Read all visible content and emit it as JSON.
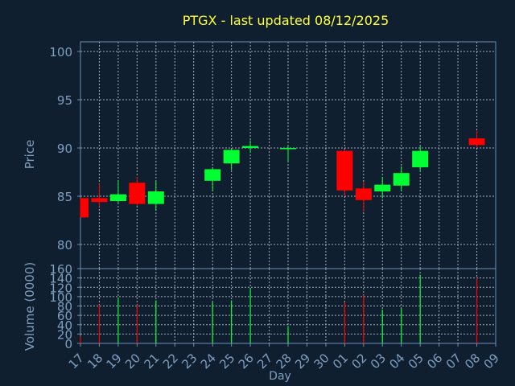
{
  "chart_data": [
    {
      "type": "candlestick",
      "title": "PTGX - last updated 08/12/2025",
      "ylabel": "Price",
      "ylim": [
        77.5,
        101
      ],
      "yticks": [
        80,
        85,
        90,
        95,
        100
      ],
      "grid": true,
      "x_tick_labels": [
        "17",
        "18",
        "19",
        "20",
        "21",
        "22",
        "23",
        "24",
        "25",
        "26",
        "27",
        "28",
        "29",
        "30",
        "01",
        "02",
        "03",
        "04",
        "05",
        "06",
        "07",
        "08",
        "09"
      ],
      "candles": [
        {
          "day": "17",
          "open": 84.8,
          "high": 84.8,
          "low": 82.8,
          "close": 82.8
        },
        {
          "day": "18",
          "open": 84.8,
          "high": 86.3,
          "low": 83.9,
          "close": 84.4
        },
        {
          "day": "19",
          "open": 84.5,
          "high": 86.6,
          "low": 84.3,
          "close": 85.2
        },
        {
          "day": "20",
          "open": 86.4,
          "high": 87.0,
          "low": 84.0,
          "close": 84.2
        },
        {
          "day": "21",
          "open": 84.2,
          "high": 86.6,
          "low": 83.5,
          "close": 85.5
        },
        {
          "day": "24",
          "open": 86.6,
          "high": 88.0,
          "low": 85.5,
          "close": 87.8
        },
        {
          "day": "25",
          "open": 88.4,
          "high": 89.9,
          "low": 87.7,
          "close": 89.8
        },
        {
          "day": "26",
          "open": 90.0,
          "high": 90.8,
          "low": 89.5,
          "close": 90.2
        },
        {
          "day": "28",
          "open": 89.9,
          "high": 90.3,
          "low": 88.6,
          "close": 90.0
        },
        {
          "day": "01",
          "open": 89.7,
          "high": 89.8,
          "low": 85.0,
          "close": 85.6
        },
        {
          "day": "02",
          "open": 85.8,
          "high": 86.5,
          "low": 83.4,
          "close": 84.6
        },
        {
          "day": "03",
          "open": 85.5,
          "high": 87.0,
          "low": 84.8,
          "close": 86.2
        },
        {
          "day": "04",
          "open": 86.1,
          "high": 88.1,
          "low": 85.5,
          "close": 87.4
        },
        {
          "day": "05",
          "open": 88.0,
          "high": 90.2,
          "low": 87.6,
          "close": 89.7
        },
        {
          "day": "08",
          "open": 91.0,
          "high": 91.8,
          "low": 90.0,
          "close": 90.3
        }
      ]
    },
    {
      "type": "bar",
      "ylabel": "Volume (0000)",
      "xlabel": "Day",
      "ylim": [
        0,
        160
      ],
      "yticks": [
        0,
        20,
        40,
        60,
        80,
        100,
        120,
        140,
        160
      ],
      "grid": true,
      "categories": [
        "17",
        "18",
        "19",
        "20",
        "21",
        "24",
        "25",
        "26",
        "28",
        "01",
        "02",
        "03",
        "04",
        "05",
        "08"
      ],
      "values": [
        15,
        83,
        97,
        83,
        92,
        88,
        92,
        118,
        37,
        88,
        103,
        72,
        75,
        147,
        140
      ]
    }
  ]
}
